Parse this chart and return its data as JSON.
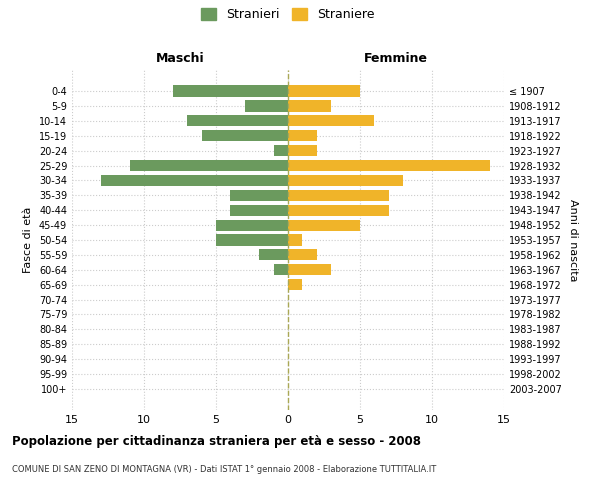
{
  "age_groups": [
    "0-4",
    "5-9",
    "10-14",
    "15-19",
    "20-24",
    "25-29",
    "30-34",
    "35-39",
    "40-44",
    "45-49",
    "50-54",
    "55-59",
    "60-64",
    "65-69",
    "70-74",
    "75-79",
    "80-84",
    "85-89",
    "90-94",
    "95-99",
    "100+"
  ],
  "birth_years": [
    "2003-2007",
    "1998-2002",
    "1993-1997",
    "1988-1992",
    "1983-1987",
    "1978-1982",
    "1973-1977",
    "1968-1972",
    "1963-1967",
    "1958-1962",
    "1953-1957",
    "1948-1952",
    "1943-1947",
    "1938-1942",
    "1933-1937",
    "1928-1932",
    "1923-1927",
    "1918-1922",
    "1913-1917",
    "1908-1912",
    "≤ 1907"
  ],
  "maschi": [
    8,
    3,
    7,
    6,
    1,
    11,
    13,
    4,
    4,
    5,
    5,
    2,
    1,
    0,
    0,
    0,
    0,
    0,
    0,
    0,
    0
  ],
  "femmine": [
    5,
    3,
    6,
    2,
    2,
    14,
    8,
    7,
    7,
    5,
    1,
    2,
    3,
    1,
    0,
    0,
    0,
    0,
    0,
    0,
    0
  ],
  "color_maschi": "#6b9a5e",
  "color_femmine": "#f0b429",
  "title": "Popolazione per cittadinanza straniera per età e sesso - 2008",
  "subtitle": "COMUNE DI SAN ZENO DI MONTAGNA (VR) - Dati ISTAT 1° gennaio 2008 - Elaborazione TUTTITALIA.IT",
  "xlabel_left": "Maschi",
  "xlabel_right": "Femmine",
  "ylabel_left": "Fasce di età",
  "ylabel_right": "Anni di nascita",
  "legend_maschi": "Stranieri",
  "legend_femmine": "Straniere",
  "xlim": 15,
  "background_color": "#ffffff",
  "grid_color": "#cccccc"
}
